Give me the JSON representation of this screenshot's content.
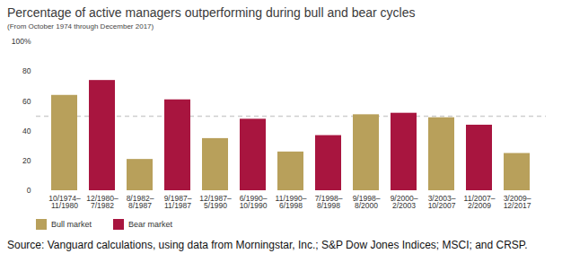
{
  "chart_data": {
    "type": "bar",
    "title": "Percentage of active managers outperforming during bull and bear cycles",
    "subtitle": "(From October 1974 through December 2017)",
    "source": "Source: Vanguard calculations, using data from Morningstar, Inc.; S&P Dow Jones Indices; MSCI; and CRSP.",
    "categories": [
      "10/1974–11/1980",
      "12/1980–7/1982",
      "8/1982–8/1987",
      "9/1987–11/1987",
      "12/1987–5/1990",
      "6/1990–10/1990",
      "11/1990–6/1998",
      "7/1998–8/1998",
      "9/1998–8/2000",
      "9/2000–2/2003",
      "3/2003–10/2007",
      "11/2007–2/2009",
      "3/2009–12/2017"
    ],
    "series": [
      {
        "name": "Bull market",
        "color": "#b8a05b",
        "values": [
          64,
          null,
          21,
          null,
          35,
          null,
          26,
          null,
          51,
          null,
          49,
          null,
          25
        ]
      },
      {
        "name": "Bear market",
        "color": "#a8153f",
        "values": [
          null,
          74,
          null,
          61,
          null,
          48,
          null,
          37,
          null,
          52,
          null,
          44,
          null
        ]
      }
    ],
    "reference_line": 50,
    "ylim": [
      0,
      100
    ],
    "yticks": [
      0,
      20,
      40,
      60,
      80,
      {
        "value": 100,
        "label": "100%"
      }
    ],
    "grid": false,
    "legend": "bottom-left"
  }
}
